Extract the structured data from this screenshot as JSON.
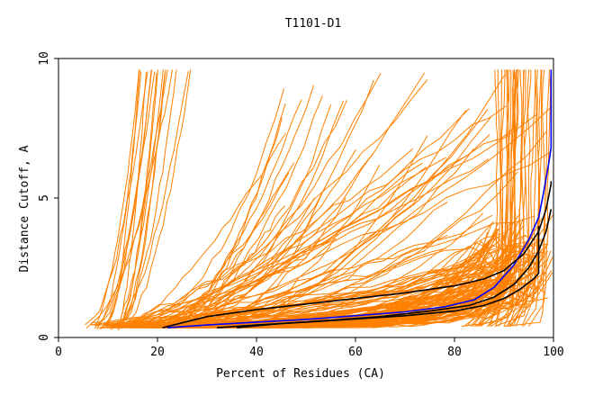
{
  "chart_data": {
    "type": "line",
    "title": "T1101-D1",
    "xlabel": "Percent of Residues (CA)",
    "ylabel": "Distance Cutoff, A",
    "xlim": [
      0,
      100
    ],
    "ylim": [
      0,
      10
    ],
    "xticks": [
      0,
      20,
      40,
      60,
      80,
      100
    ],
    "yticks": [
      0,
      5,
      10
    ],
    "grid": false,
    "legend": "none",
    "colors": {
      "background_models": "#ff8000",
      "highlight_blue": "#0000ff",
      "highlight_black": "#000000"
    },
    "series": [
      {
        "color": "#0000ff",
        "x": [
          22,
          30,
          40,
          50,
          60,
          70,
          78,
          84,
          88,
          92,
          95,
          97,
          98,
          99,
          99.5,
          99.5
        ],
        "y": [
          0.35,
          0.45,
          0.55,
          0.65,
          0.78,
          0.92,
          1.1,
          1.35,
          1.8,
          2.6,
          3.5,
          4.3,
          5.2,
          6.2,
          6.8,
          9.6
        ]
      },
      {
        "color": "#000000",
        "x": [
          21,
          30,
          40,
          50,
          60,
          70,
          80,
          86,
          90,
          94,
          97,
          98.5,
          99.5,
          99.5
        ],
        "y": [
          0.35,
          0.75,
          1.0,
          1.2,
          1.4,
          1.6,
          1.85,
          2.1,
          2.4,
          3.0,
          3.8,
          4.6,
          5.5,
          5.6
        ]
      },
      {
        "color": "#000000",
        "x": [
          36,
          45,
          55,
          65,
          75,
          83,
          88,
          92,
          95,
          97,
          98.5,
          99.5,
          99.5
        ],
        "y": [
          0.35,
          0.5,
          0.62,
          0.75,
          0.95,
          1.15,
          1.45,
          1.9,
          2.5,
          3.1,
          3.8,
          4.6,
          4.6
        ]
      },
      {
        "color": "#000000",
        "x": [
          32,
          40,
          50,
          60,
          70,
          80,
          86,
          90,
          93,
          96,
          97,
          97
        ],
        "y": [
          0.35,
          0.45,
          0.55,
          0.66,
          0.78,
          0.95,
          1.15,
          1.4,
          1.7,
          2.1,
          2.3,
          4.0
        ]
      }
    ]
  }
}
